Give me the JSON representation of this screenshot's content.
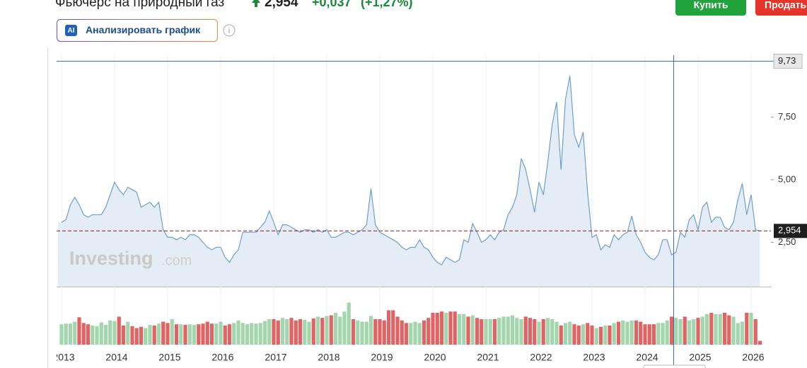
{
  "header": {
    "title": "Фьючерс на природный газ",
    "price": "2,954",
    "change": "+0,037",
    "change_pct": "(+1,27%)",
    "buy": "Купить",
    "sell": "Продать"
  },
  "toolbar": {
    "ai_icon": "AI",
    "analyze_button": "Анализировать график"
  },
  "watermark": {
    "brand": "Investing",
    "domain": ".com"
  },
  "chart_data": {
    "type": "line",
    "color": "#6e9fcc",
    "fill": "#e4edf6",
    "xgrid": true,
    "categories": [
      "2013",
      null,
      null,
      null,
      null,
      null,
      null,
      null,
      null,
      null,
      null,
      null,
      "2014",
      null,
      null,
      null,
      null,
      null,
      null,
      null,
      null,
      null,
      null,
      null,
      "2015",
      null,
      null,
      null,
      null,
      null,
      null,
      null,
      null,
      null,
      null,
      null,
      "2016",
      null,
      null,
      null,
      null,
      null,
      null,
      null,
      null,
      null,
      null,
      null,
      "2017",
      null,
      null,
      null,
      null,
      null,
      null,
      null,
      null,
      null,
      null,
      null,
      "2018",
      null,
      null,
      null,
      null,
      null,
      null,
      null,
      null,
      null,
      null,
      null,
      "2019",
      null,
      null,
      null,
      null,
      null,
      null,
      null,
      null,
      null,
      null,
      null,
      "2020",
      null,
      null,
      null,
      null,
      null,
      null,
      null,
      null,
      null,
      null,
      null,
      "2021",
      null,
      null,
      null,
      null,
      null,
      null,
      null,
      null,
      null,
      null,
      null,
      "2022",
      null,
      null,
      null,
      null,
      null,
      null,
      null,
      null,
      null,
      null,
      null,
      "2023",
      null,
      null,
      null,
      null,
      null,
      null,
      null,
      null,
      null,
      null,
      null,
      "2024",
      null,
      null,
      null,
      null,
      null,
      null,
      null,
      null,
      null,
      null,
      null,
      "2025",
      null,
      null,
      null,
      null,
      null,
      null,
      null,
      null,
      null,
      null,
      null,
      "2026",
      null,
      null
    ],
    "values": [
      3.3,
      3.4,
      4.0,
      4.3,
      4.0,
      3.6,
      3.5,
      3.6,
      3.6,
      3.6,
      3.9,
      4.4,
      4.9,
      4.6,
      4.4,
      4.7,
      4.6,
      4.5,
      3.9,
      4.0,
      4.1,
      3.9,
      4.1,
      3.0,
      2.7,
      2.7,
      2.6,
      2.7,
      2.6,
      2.8,
      2.8,
      2.7,
      2.5,
      2.3,
      2.2,
      2.3,
      2.3,
      1.9,
      1.7,
      2.0,
      2.2,
      2.9,
      2.9,
      2.9,
      2.9,
      3.1,
      3.3,
      3.75,
      3.3,
      2.8,
      3.2,
      3.2,
      3.1,
      3.0,
      2.9,
      3.0,
      3.0,
      2.9,
      3.0,
      2.9,
      3.0,
      2.7,
      2.7,
      2.8,
      2.9,
      2.9,
      2.8,
      2.9,
      3.0,
      3.2,
      4.65,
      3.2,
      2.9,
      2.8,
      2.7,
      2.6,
      2.5,
      2.3,
      2.2,
      2.3,
      2.3,
      2.6,
      2.3,
      2.2,
      1.9,
      1.7,
      1.6,
      1.9,
      1.8,
      1.7,
      1.8,
      2.6,
      2.5,
      3.25,
      2.9,
      2.5,
      2.6,
      2.8,
      2.6,
      2.9,
      3.0,
      3.6,
      3.9,
      4.4,
      5.85,
      5.4,
      4.6,
      3.7,
      4.9,
      4.4,
      5.7,
      7.2,
      8.1,
      5.4,
      8.2,
      9.15,
      6.8,
      6.3,
      6.9,
      4.5,
      2.7,
      2.8,
      2.2,
      2.4,
      2.3,
      2.8,
      2.6,
      2.8,
      2.9,
      3.55,
      2.8,
      2.5,
      2.1,
      1.9,
      1.8,
      2.0,
      2.6,
      2.6,
      2.0,
      2.1,
      2.9,
      2.7,
      3.4,
      3.6,
      3.0,
      3.9,
      4.1,
      3.3,
      3.5,
      3.5,
      3.1,
      3.0,
      3.3,
      4.2,
      4.85,
      3.6,
      4.4,
      3.0,
      2.954
    ],
    "volume": [
      32,
      33,
      33,
      36,
      43,
      34,
      32,
      30,
      29,
      35,
      31,
      38,
      37,
      44,
      30,
      36,
      29,
      26,
      28,
      26,
      31,
      30,
      33,
      36,
      34,
      40,
      32,
      32,
      31,
      32,
      31,
      32,
      33,
      36,
      33,
      33,
      36,
      30,
      32,
      34,
      38,
      34,
      32,
      34,
      33,
      34,
      37,
      40,
      40,
      38,
      42,
      40,
      42,
      38,
      40,
      39,
      36,
      41,
      44,
      42,
      45,
      46,
      50,
      44,
      52,
      66,
      40,
      38,
      36,
      36,
      45,
      40,
      40,
      38,
      54,
      54,
      44,
      38,
      34,
      34,
      36,
      34,
      38,
      42,
      50,
      50,
      52,
      50,
      52,
      52,
      48,
      48,
      44,
      46,
      42,
      40,
      40,
      40,
      40,
      42,
      44,
      44,
      46,
      42,
      40,
      44,
      42,
      40,
      36,
      40,
      42,
      40,
      36,
      30,
      34,
      36,
      32,
      30,
      32,
      34,
      30,
      26,
      28,
      30,
      30,
      34,
      36,
      38,
      36,
      38,
      38,
      36,
      32,
      32,
      32,
      34,
      34,
      38,
      44,
      42,
      40,
      44,
      38,
      40,
      42,
      44,
      48,
      50,
      48,
      48,
      50,
      46,
      44,
      34,
      36,
      50,
      50,
      40,
      6
    ],
    "up_color": "#a3d6ad",
    "down_color": "#e06464",
    "ylim": [
      0.73,
      9.97
    ],
    "yticks": [
      {
        "value": 2.5,
        "label": "2,50"
      },
      {
        "value": 5,
        "label": "5,00"
      },
      {
        "value": 7.5,
        "label": "7,50"
      }
    ],
    "last_price": {
      "value": 2.954,
      "label": "2,954"
    },
    "crosshair": {
      "value": 9.73,
      "label": "9,73"
    }
  }
}
